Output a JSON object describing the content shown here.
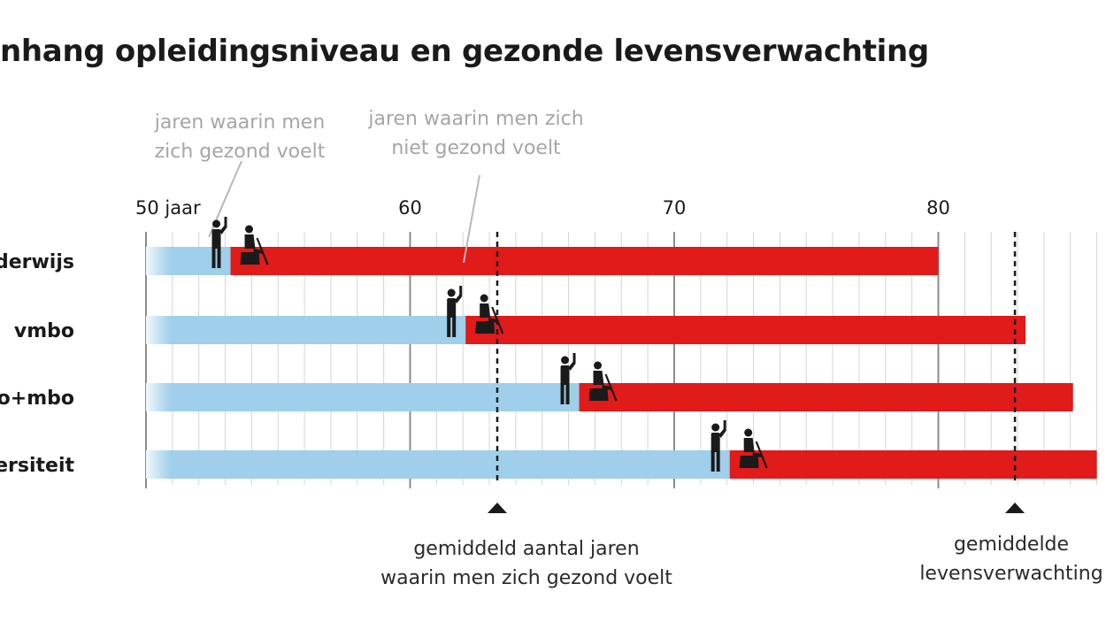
{
  "title": "nhang opleidingsniveau en gezonde levensverwachting",
  "annotations": {
    "healthy_years": [
      "jaren waarin men",
      "zich gezond voelt"
    ],
    "unhealthy_years": [
      "jaren waarin men zich",
      "niet gezond voelt"
    ],
    "avg_healthy": [
      "gemiddeld aantal jaren",
      "waarin men zich gezond voelt"
    ],
    "avg_life": [
      "gemiddelde",
      "levensverwachting"
    ]
  },
  "colors": {
    "healthy": "#9fcfea",
    "unhealthy": "#e11a1a",
    "grid": "#d4d4d4",
    "axis": "#8c8c8c",
    "icon": "#1a1a1a"
  },
  "icons": {
    "healthy": "standing-person-icon",
    "unhealthy": "seated-person-with-cane-icon"
  },
  "chart_data": {
    "type": "bar",
    "orientation": "horizontal",
    "stacked": true,
    "categories": [
      "derwijs",
      "vmbo",
      "o+mbo",
      "ersiteit"
    ],
    "series": [
      {
        "name": "jaren waarin men zich gezond voelt",
        "color": "#9fcfea",
        "start": [
          50,
          50,
          50,
          50
        ],
        "end": [
          53.2,
          62.1,
          66.4,
          72.1
        ]
      },
      {
        "name": "jaren waarin men zich niet gezond voelt",
        "color": "#e11a1a",
        "start": [
          53.2,
          62.1,
          66.4,
          72.1
        ],
        "end": [
          80,
          83.3,
          85.1,
          86
        ]
      }
    ],
    "xaxis": {
      "ticks": [
        50,
        60,
        70,
        80
      ],
      "tick_labels": [
        "50 jaar",
        "60",
        "70",
        "80"
      ],
      "range": [
        50,
        86
      ],
      "minor_step": 1
    },
    "reference_lines": [
      {
        "label": "gemiddeld aantal jaren waarin men zich gezond voelt",
        "value": 63.3
      },
      {
        "label": "gemiddelde levensverwachting",
        "value": 82.9
      }
    ],
    "grid": true
  }
}
